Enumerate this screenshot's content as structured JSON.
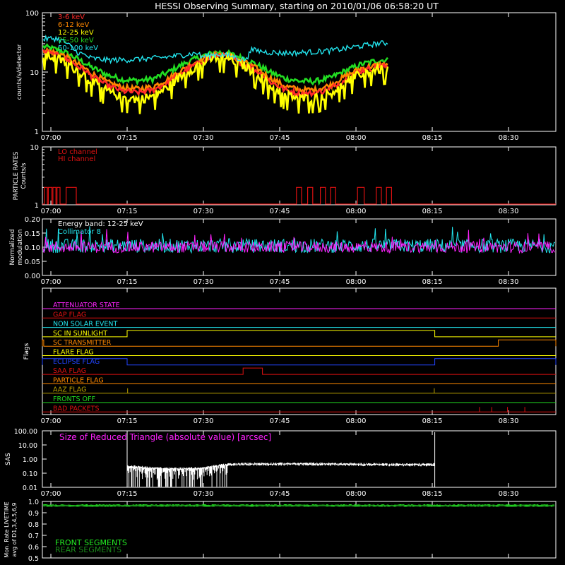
{
  "title": "HESSI Observing Summary, starting on 2010/01/06 06:58:20 UT",
  "time_ticks": [
    "07:00",
    "07:15",
    "07:30",
    "07:45",
    "08:00",
    "08:15",
    "08:30"
  ],
  "chart_data": [
    {
      "type": "line",
      "name": "count-rates",
      "ylabel": "counts/s/detector",
      "yscale": "log",
      "ylim": [
        1,
        100
      ],
      "yticks": [
        "1",
        "10",
        "100"
      ],
      "xlim_minutes_after_0700": [
        -1.67,
        39.8
      ],
      "legend_position": "top-left",
      "series": [
        {
          "name": "3-6 keV",
          "color": "#ff2a2a",
          "values": [
            [
              -1.5,
              22
            ],
            [
              2,
              18
            ],
            [
              5,
              13
            ],
            [
              8,
              8.5
            ],
            [
              11,
              6
            ],
            [
              14,
              4.8
            ],
            [
              17,
              4.5
            ],
            [
              20,
              4.9
            ],
            [
              23,
              6.5
            ],
            [
              26,
              10
            ],
            [
              29,
              14
            ],
            [
              31,
              17
            ],
            [
              33,
              19
            ],
            [
              35,
              18
            ],
            [
              37,
              15
            ],
            [
              40,
              11
            ],
            [
              43,
              7
            ],
            [
              46,
              5
            ],
            [
              49,
              4.3
            ],
            [
              52,
              4.4
            ],
            [
              55,
              5.2
            ],
            [
              58,
              7.5
            ],
            [
              61,
              10.5
            ],
            [
              64,
              12
            ],
            [
              66,
              12.5
            ]
          ]
        },
        {
          "name": "6-12 keV",
          "color": "#ff8800",
          "values": [
            [
              -1.5,
              24
            ],
            [
              2,
              20
            ],
            [
              5,
              14
            ],
            [
              8,
              9.5
            ],
            [
              11,
              6.8
            ],
            [
              14,
              5.5
            ],
            [
              17,
              5.2
            ],
            [
              20,
              5.6
            ],
            [
              23,
              7.5
            ],
            [
              26,
              11
            ],
            [
              29,
              15.5
            ],
            [
              31,
              18
            ],
            [
              33,
              20
            ],
            [
              35,
              19
            ],
            [
              37,
              16
            ],
            [
              40,
              12
            ],
            [
              43,
              8
            ],
            [
              46,
              5.8
            ],
            [
              49,
              5
            ],
            [
              52,
              5
            ],
            [
              55,
              6
            ],
            [
              58,
              8.5
            ],
            [
              61,
              11.5
            ],
            [
              64,
              13
            ],
            [
              66,
              13.5
            ]
          ]
        },
        {
          "name": "12-25 keV",
          "color": "#ffff00",
          "values": [
            [
              -1.5,
              20
            ],
            [
              2,
              16
            ],
            [
              5,
              11
            ],
            [
              8,
              7
            ],
            [
              11,
              4.8
            ],
            [
              14,
              3.8
            ],
            [
              17,
              3.5
            ],
            [
              20,
              3.9
            ],
            [
              23,
              5.5
            ],
            [
              26,
              9
            ],
            [
              29,
              13
            ],
            [
              31,
              16
            ],
            [
              33,
              18
            ],
            [
              35,
              17
            ],
            [
              37,
              14
            ],
            [
              40,
              10
            ],
            [
              43,
              6
            ],
            [
              46,
              4.2
            ],
            [
              49,
              3.6
            ],
            [
              52,
              3.7
            ],
            [
              55,
              4.4
            ],
            [
              58,
              6.5
            ],
            [
              61,
              9.5
            ],
            [
              64,
              11
            ],
            [
              66,
              11.5
            ]
          ]
        },
        {
          "name": "25-50 keV",
          "color": "#22dd22",
          "values": [
            [
              -1.5,
              27
            ],
            [
              2,
              23
            ],
            [
              5,
              17
            ],
            [
              8,
              12
            ],
            [
              11,
              9
            ],
            [
              14,
              7.5
            ],
            [
              17,
              7.2
            ],
            [
              20,
              7.6
            ],
            [
              23,
              9.8
            ],
            [
              26,
              13.5
            ],
            [
              29,
              17.5
            ],
            [
              31,
              20
            ],
            [
              33,
              21.5
            ],
            [
              35,
              20.5
            ],
            [
              37,
              18
            ],
            [
              40,
              14
            ],
            [
              43,
              10
            ],
            [
              46,
              7.8
            ],
            [
              49,
              7
            ],
            [
              52,
              7
            ],
            [
              55,
              8
            ],
            [
              58,
              10.5
            ],
            [
              61,
              13.5
            ],
            [
              64,
              15.5
            ],
            [
              66,
              16
            ]
          ]
        },
        {
          "name": "50-100 keV",
          "color": "#22e5ee",
          "values": [
            [
              -1.5,
              36
            ],
            [
              1,
              37
            ],
            [
              2.5,
              33
            ],
            [
              5,
              22
            ],
            [
              8,
              17
            ],
            [
              11,
              16
            ],
            [
              14,
              16
            ],
            [
              17,
              16.5
            ],
            [
              20,
              17
            ],
            [
              23,
              18
            ],
            [
              26,
              19.5
            ],
            [
              29,
              21
            ],
            [
              29.5,
              18
            ],
            [
              31,
              19
            ],
            [
              33,
              20
            ],
            [
              35,
              19
            ],
            [
              37,
              17
            ],
            [
              38.7,
              16
            ],
            [
              39,
              24
            ],
            [
              42,
              22
            ],
            [
              45,
              21
            ],
            [
              48,
              21
            ],
            [
              52,
              22
            ],
            [
              55,
              23
            ],
            [
              58,
              25
            ],
            [
              61,
              27.5
            ],
            [
              64,
              30
            ],
            [
              66,
              31
            ]
          ]
        }
      ]
    },
    {
      "type": "line",
      "name": "particle-rates",
      "ylabel": "PARTICLE RATES Counts/s",
      "yscale": "log",
      "ylim": [
        1,
        10
      ],
      "yticks": [
        "1",
        "10"
      ],
      "series": [
        {
          "name": "LO channel",
          "color": "#dd1111",
          "pulses": [
            [
              -1.3,
              -0.7
            ],
            [
              -0.5,
              0.2
            ],
            [
              0.4,
              1
            ],
            [
              1.2,
              1.8
            ],
            [
              3,
              5
            ],
            [
              48.3,
              49.3
            ],
            [
              50.5,
              51.5
            ],
            [
              53,
              54
            ],
            [
              55,
              56
            ],
            [
              60.3,
              61.6
            ],
            [
              64,
              65
            ],
            [
              66,
              67
            ]
          ]
        },
        {
          "name": "HI channel",
          "color": "#dd1111",
          "pulses": []
        }
      ]
    },
    {
      "type": "line",
      "name": "normalized-modulation",
      "ylabel": "Normalized modulation",
      "ylim": [
        0.0,
        0.2
      ],
      "yticks": [
        "0.00",
        "0.05",
        "0.10",
        "0.15",
        "0.20"
      ],
      "annotation": "Energy band: 12-25 keV",
      "series": [
        {
          "name": "Collimator 8",
          "color": "#22e5ee",
          "mean": 0.105,
          "spread": 0.05
        },
        {
          "name": "",
          "color": "#ff22ff",
          "mean": 0.1,
          "spread": 0.04
        }
      ]
    },
    {
      "type": "line",
      "name": "flags",
      "ylabel": "Flags",
      "series": [
        {
          "name": "ATTENUATOR STATE",
          "color": "#ff22ff",
          "transitions": []
        },
        {
          "name": "GAP FLAG",
          "color": "#dd1111",
          "transitions": []
        },
        {
          "name": "NON SOLAR EVENT",
          "color": "#22e5ee",
          "transitions": []
        },
        {
          "name": "SC IN SUNLIGHT",
          "color": "#ffff00",
          "high": [
            [
              15,
              75.5
            ]
          ]
        },
        {
          "name": "SC TRANSMITTER",
          "color": "#ff8800",
          "high": [
            [
              -1.67,
              -1.4
            ],
            [
              88,
              100
            ]
          ]
        },
        {
          "name": "FLARE FLAG",
          "color": "#ffff00",
          "transitions": []
        },
        {
          "name": "ECLIPSE FLAG",
          "color": "#2244ff",
          "high": [
            [
              -1.67,
              15
            ],
            [
              75.5,
              100
            ]
          ]
        },
        {
          "name": "SAA FLAG",
          "color": "#dd1111",
          "high": [
            [
              37.8,
              41.6
            ]
          ]
        },
        {
          "name": "PARTICLE FLAG",
          "color": "#ff8800",
          "transitions": []
        },
        {
          "name": "AAZ FLAG",
          "color": "#b8a000",
          "spikes": [
            15.1,
            75.4
          ]
        },
        {
          "name": "FRONTS OFF",
          "color": "#22dd22",
          "transitions": []
        },
        {
          "name": "BAD PACKETS",
          "color": "#dd1111",
          "spikes": [
            84.3,
            86.7,
            89.8,
            93.2
          ]
        }
      ]
    },
    {
      "type": "line",
      "name": "sas",
      "ylabel": "SAS",
      "yscale": "log",
      "ylim": [
        0.01,
        100
      ],
      "yticks": [
        "0.01",
        "0.10",
        "1.00",
        "10.00",
        "100.00"
      ],
      "annotation": "Size of Reduced Triangle (absolute value) [arcsec]",
      "series": [
        {
          "name": "",
          "color": "#ffffff",
          "active": [
            15,
            75.5
          ],
          "values": [
            [
              15,
              0.3
            ],
            [
              20,
              0.22
            ],
            [
              25,
              0.2
            ],
            [
              30,
              0.22
            ],
            [
              35,
              0.4
            ],
            [
              40,
              0.45
            ],
            [
              50,
              0.45
            ],
            [
              60,
              0.42
            ],
            [
              70,
              0.4
            ],
            [
              75,
              0.4
            ]
          ]
        }
      ]
    },
    {
      "type": "line",
      "name": "livetime",
      "ylabel": "Mon. Rate LIVETIME avg of D1,3,4,5,6,9",
      "ylim": [
        0.5,
        1.0
      ],
      "yticks": [
        "0.5",
        "0.6",
        "0.7",
        "0.8",
        "0.9",
        "1.0"
      ],
      "series": [
        {
          "name": "FRONT SEGMENTS",
          "color": "#22ee22",
          "mean": 0.965
        },
        {
          "name": "REAR SEGMENTS",
          "color": "#1a8a1a",
          "mean": 0.96
        }
      ]
    }
  ]
}
